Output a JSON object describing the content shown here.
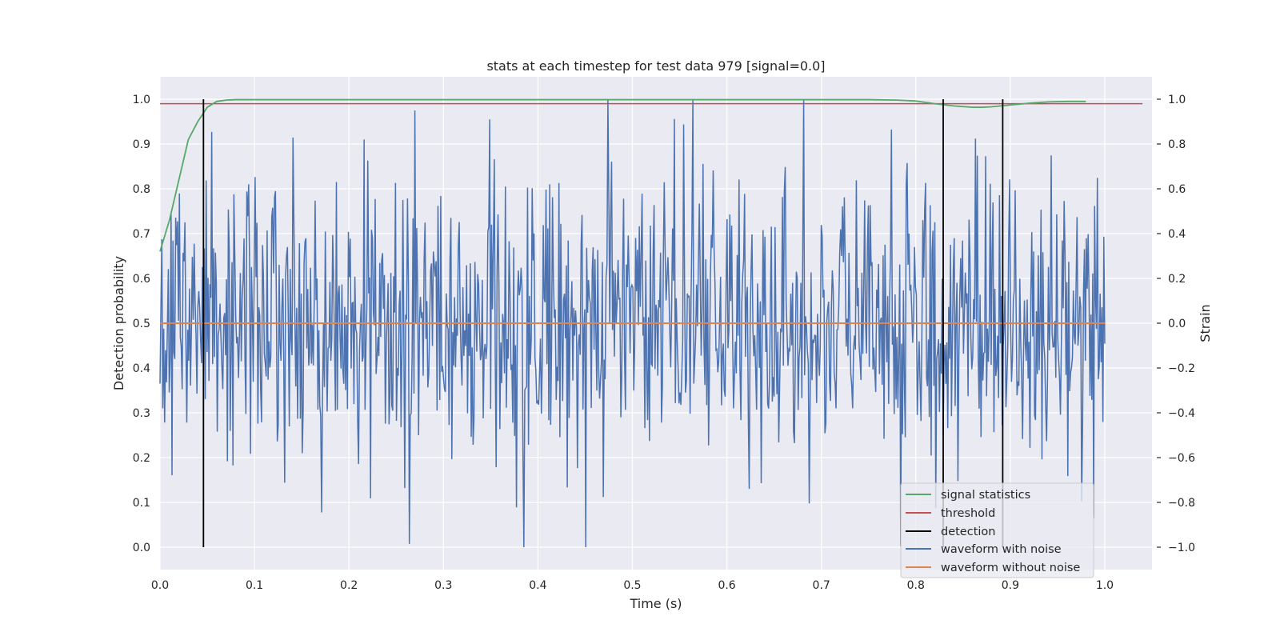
{
  "chart_data": {
    "type": "line",
    "title": "stats at each timestep for test data 979 [signal=0.0]",
    "xlabel": "Time (s)",
    "ylabel": "Detection probability",
    "y2label": "Strain",
    "xlim": [
      0.0,
      1.05
    ],
    "ylim": [
      -0.05,
      1.05
    ],
    "y2lim": [
      -1.1,
      1.1
    ],
    "x_ticks": [
      0.0,
      0.1,
      0.2,
      0.3,
      0.4,
      0.5,
      0.6,
      0.7,
      0.8,
      0.9,
      1.0
    ],
    "y_ticks": [
      0.0,
      0.1,
      0.2,
      0.3,
      0.4,
      0.5,
      0.6,
      0.7,
      0.8,
      0.9,
      1.0
    ],
    "y2_ticks": [
      -1.0,
      -0.8,
      -0.6,
      -0.4,
      -0.2,
      0.0,
      0.2,
      0.4,
      0.6,
      0.8,
      1.0
    ],
    "grid": true,
    "legend_position": "lower-right",
    "colors": {
      "signal_statistics": "#55a868",
      "threshold": "#c44e52",
      "detection": "#000000",
      "waveform_with_noise": "#4c72b0",
      "waveform_without_noise": "#dd8452",
      "background": "#eaeaf2",
      "grid": "#ffffff"
    },
    "series": [
      {
        "name": "signal statistics",
        "axis": "left",
        "x": [
          0.0,
          0.01,
          0.02,
          0.03,
          0.04,
          0.05,
          0.06,
          0.07,
          0.08,
          0.1,
          0.2,
          0.3,
          0.4,
          0.5,
          0.6,
          0.7,
          0.75,
          0.78,
          0.8,
          0.82,
          0.84,
          0.86,
          0.87,
          0.88,
          0.9,
          0.92,
          0.94,
          0.96,
          0.98
        ],
        "y": [
          0.66,
          0.73,
          0.82,
          0.91,
          0.95,
          0.982,
          0.995,
          0.998,
          0.999,
          0.999,
          0.999,
          0.999,
          0.999,
          0.999,
          0.999,
          0.999,
          0.999,
          0.998,
          0.996,
          0.99,
          0.985,
          0.982,
          0.982,
          0.983,
          0.987,
          0.991,
          0.994,
          0.995,
          0.995
        ]
      },
      {
        "name": "threshold",
        "axis": "left",
        "x": [
          0.0,
          1.04
        ],
        "y": [
          0.99,
          0.99
        ]
      },
      {
        "name": "detection",
        "axis": "left",
        "type": "vlines",
        "x": [
          0.046,
          0.829,
          0.892
        ],
        "ymin": 0.0,
        "ymax": 1.0
      },
      {
        "name": "waveform with noise",
        "axis": "right",
        "x_range": [
          0.0,
          1.0
        ],
        "points": 1024,
        "amplitude": 0.32,
        "min": -1.0,
        "max": 1.0
      },
      {
        "name": "waveform without noise",
        "axis": "right",
        "x": [
          0.0,
          1.0
        ],
        "y": [
          0.0,
          0.0
        ]
      }
    ]
  }
}
